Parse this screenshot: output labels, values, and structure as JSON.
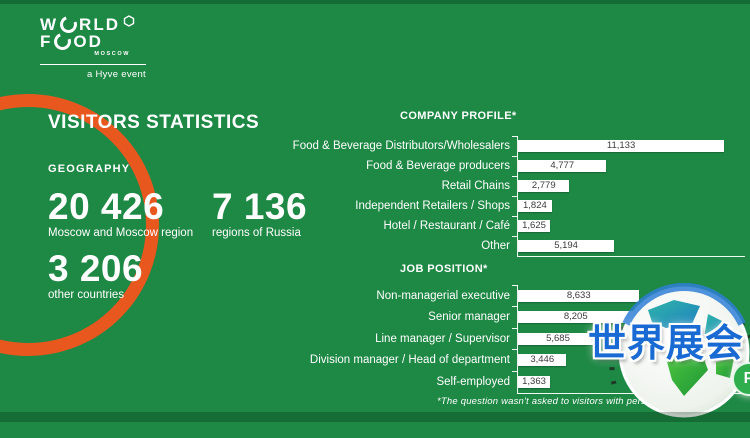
{
  "logo": {
    "word1_start": "W",
    "word1_end": "RLD",
    "word2_start": "F",
    "word2_end": "OD",
    "city": "MOSCOW",
    "tagline": "a Hyve event"
  },
  "header": {
    "title": "VISITORS STATISTICS"
  },
  "geography": {
    "heading": "GEOGRAPHY",
    "stats": [
      {
        "value": "20 426",
        "label": "Moscow and Moscow region"
      },
      {
        "value": "7 136",
        "label": "regions of Russia"
      },
      {
        "value": "3 206",
        "label": "other countries"
      }
    ]
  },
  "chart_data": [
    {
      "type": "bar",
      "title": "COMPANY PROFILE*",
      "orientation": "horizontal",
      "categories": [
        "Food & Beverage Distributors/Wholesalers",
        "Food & Beverage producers",
        "Retail Chains",
        "Independent Retailers / Shops",
        "Hotel / Restaurant / Café",
        "Other"
      ],
      "values": [
        11133,
        4777,
        2779,
        1824,
        1625,
        5194
      ],
      "value_labels": [
        "11,133",
        "4,777",
        "2,779",
        "1,824",
        "1,625",
        "5,194"
      ],
      "xlim": [
        0,
        12260
      ],
      "grid": false,
      "value_labels_inside_bars": true
    },
    {
      "type": "bar",
      "title": "JOB POSITION*",
      "orientation": "horizontal",
      "categories": [
        "Non-managerial executive",
        "Senior manager",
        "Line manager / Supervisor",
        "Division manager / Head of department",
        "Self-employed"
      ],
      "values": [
        8633,
        8205,
        5685,
        3446,
        1363
      ],
      "value_labels": [
        "8,633",
        "8,205",
        "5,685",
        "3,446",
        "1,363"
      ],
      "xlim": [
        0,
        16130
      ],
      "grid": false,
      "value_labels_inside_bars": true
    }
  ],
  "footnote": "*The question wasn't asked to visitors with personal interest.",
  "watermark": {
    "text": "世界展会",
    "badge": "P"
  },
  "colors": {
    "background": "#1E8845",
    "accent_orange": "#E8571E",
    "bar_fill": "#FFFFFF",
    "bar_text": "#3C3C3C",
    "watermark_blue": "#1A6AD4"
  }
}
